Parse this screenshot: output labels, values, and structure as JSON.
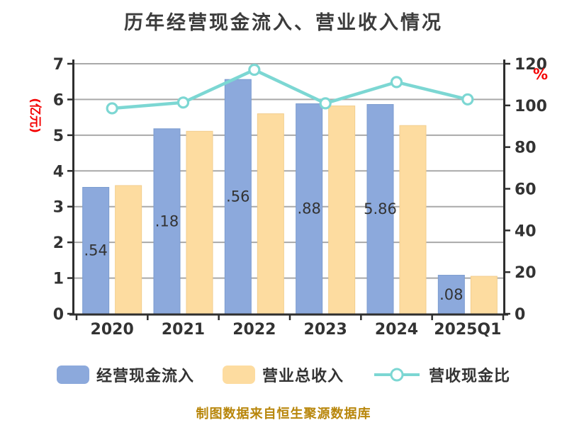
{
  "title": "历年经营现金流入、营业收入情况",
  "footer": "制图数据来自恒生聚源数据库",
  "chart_data": {
    "type": "bar",
    "subtype": "grouped-bars-with-line-overlay",
    "categories": [
      "2020",
      "2021",
      "2022",
      "2023",
      "2024",
      "2025Q1"
    ],
    "series": [
      {
        "name": "经营现金流入",
        "type": "bar",
        "axis": "left",
        "color": "#8CA9DC",
        "border_color": "#7B9CCF",
        "values": [
          3.54,
          5.18,
          6.56,
          5.88,
          5.86,
          1.08
        ],
        "bar_labels_visible": [
          ".54",
          ".18",
          ".56",
          ".88",
          "5.86",
          ".08"
        ]
      },
      {
        "name": "营业总收入",
        "type": "bar",
        "axis": "left",
        "color": "#FDDCA0",
        "border_color": "#F2CE8E",
        "values": [
          3.59,
          5.11,
          5.6,
          5.82,
          5.27,
          1.05
        ]
      },
      {
        "name": "营收现金比",
        "type": "line",
        "axis": "right",
        "unit": "%",
        "color": "#7CD7D3",
        "marker": "circle-white-fill",
        "values": [
          98.6,
          101.4,
          117.1,
          101.0,
          111.2,
          102.9
        ]
      }
    ],
    "left_axis": {
      "name": "(亿元)",
      "name_color": "#F40000",
      "min": 0,
      "max": 7,
      "tick_interval": 1,
      "ticks": [
        "0",
        "1",
        "2",
        "3",
        "4",
        "5",
        "6",
        "7"
      ]
    },
    "right_axis": {
      "name": "%",
      "name_color": "#F40000",
      "min": 0,
      "max": 120,
      "tick_interval": 20,
      "ticks": [
        "0",
        "20",
        "40",
        "60",
        "80",
        "100",
        "120"
      ]
    },
    "grid": true,
    "grid_color": "#A9A9A9",
    "axis_color": "#2E2E2E",
    "text_color": "#333333",
    "legend_position": "bottom"
  }
}
